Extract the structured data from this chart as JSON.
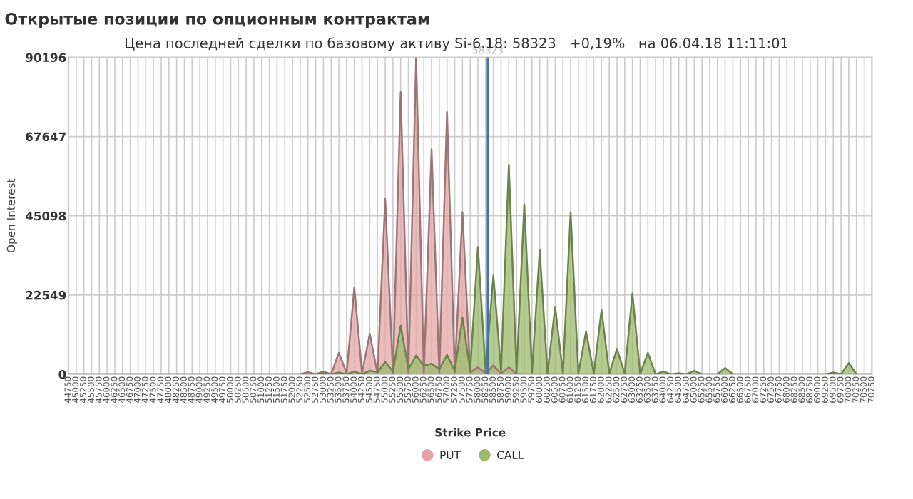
{
  "chart_data": {
    "type": "area",
    "title": "Открытые позиции по опционным контрактам",
    "subtitle": "Цена последней сделки по базовому активу Si-6.18: 58323   +0,19%   на 06.04.18 11:11:01",
    "xlabel": "Strike Price",
    "ylabel": "Open Interest",
    "x": [
      44750,
      45000,
      45250,
      45500,
      45750,
      46000,
      46250,
      46500,
      46750,
      47000,
      47250,
      47500,
      47750,
      48000,
      48250,
      48500,
      48750,
      49000,
      49250,
      49500,
      49750,
      50000,
      50250,
      50500,
      50750,
      51000,
      51250,
      51500,
      51750,
      52000,
      52250,
      52500,
      52750,
      53000,
      53250,
      53500,
      53750,
      54000,
      54250,
      54500,
      54750,
      55000,
      55250,
      55500,
      55750,
      56000,
      56250,
      56500,
      56750,
      57000,
      57250,
      57500,
      57750,
      58000,
      58250,
      58500,
      58750,
      59000,
      59250,
      59500,
      59750,
      60000,
      60250,
      60500,
      60750,
      61000,
      61250,
      61500,
      61750,
      62000,
      62250,
      62500,
      62750,
      63000,
      63250,
      63500,
      63750,
      64000,
      64250,
      64500,
      64750,
      65000,
      65250,
      65500,
      65750,
      66000,
      66250,
      66500,
      66750,
      67000,
      67250,
      67500,
      67750,
      68000,
      68250,
      68500,
      68750,
      69000,
      69250,
      69500,
      69750,
      70000,
      70250,
      70500,
      70750
    ],
    "series": [
      {
        "name": "PUT",
        "color": "#e3a5a5",
        "values": [
          0,
          0,
          0,
          0,
          0,
          0,
          0,
          0,
          0,
          0,
          0,
          0,
          0,
          0,
          0,
          0,
          0,
          0,
          0,
          0,
          0,
          0,
          0,
          0,
          0,
          0,
          0,
          0,
          0,
          0,
          0,
          600,
          0,
          800,
          0,
          6100,
          300,
          24700,
          300,
          11500,
          200,
          49900,
          300,
          80300,
          300,
          90196,
          300,
          64000,
          500,
          74600,
          500,
          46100,
          500,
          2000,
          300,
          2500,
          200,
          2000,
          100,
          0,
          0,
          0,
          0,
          0,
          0,
          0,
          0,
          0,
          0,
          0,
          0,
          0,
          0,
          0,
          0,
          0,
          0,
          0,
          0,
          0,
          0,
          0,
          0,
          0,
          0,
          0,
          0,
          0,
          0,
          0,
          0,
          0,
          0,
          0,
          0,
          0,
          0,
          0,
          0,
          0,
          0,
          0,
          0,
          0,
          0
        ]
      },
      {
        "name": "CALL",
        "color": "#9cbb6c",
        "values": [
          0,
          0,
          0,
          0,
          0,
          0,
          0,
          0,
          0,
          0,
          0,
          0,
          0,
          0,
          0,
          0,
          0,
          0,
          0,
          0,
          0,
          0,
          0,
          0,
          0,
          0,
          0,
          0,
          0,
          0,
          0,
          0,
          0,
          300,
          0,
          500,
          0,
          800,
          0,
          1000,
          600,
          3500,
          800,
          13800,
          1500,
          5300,
          2500,
          3000,
          1500,
          5500,
          1000,
          16100,
          1000,
          36200,
          800,
          28100,
          1000,
          59600,
          500,
          48400,
          500,
          35300,
          300,
          19200,
          300,
          46100,
          200,
          12200,
          200,
          18300,
          200,
          7200,
          200,
          23000,
          100,
          6100,
          0,
          800,
          0,
          300,
          0,
          1000,
          0,
          0,
          0,
          1800,
          0,
          0,
          0,
          0,
          0,
          0,
          0,
          0,
          0,
          0,
          0,
          0,
          0,
          500,
          0,
          3200,
          0,
          0,
          0
        ]
      }
    ],
    "xlim": [
      44750,
      70750
    ],
    "xticks": [
      44750,
      45000,
      45250,
      45500,
      45750,
      46000,
      46250,
      46500,
      46750,
      47000,
      47250,
      47500,
      47750,
      48000,
      48250,
      48500,
      48750,
      49000,
      49250,
      49500,
      49750,
      50000,
      50250,
      50500,
      50750,
      51000,
      51250,
      51500,
      51750,
      52000,
      52250,
      52500,
      52750,
      53000,
      53250,
      53500,
      53750,
      54000,
      54250,
      54500,
      54750,
      55000,
      55250,
      55500,
      55750,
      56000,
      56250,
      56500,
      56750,
      57000,
      57250,
      57500,
      57750,
      58000,
      58250,
      58500,
      58750,
      59000,
      59250,
      59500,
      59750,
      60000,
      60250,
      60500,
      60750,
      61000,
      61250,
      61500,
      61750,
      62000,
      62250,
      62500,
      62750,
      63000,
      63250,
      63500,
      63750,
      64000,
      64250,
      64500,
      64750,
      65000,
      65250,
      65500,
      65750,
      66000,
      66250,
      66500,
      66750,
      67000,
      67250,
      67500,
      67750,
      68000,
      68250,
      68500,
      68750,
      69000,
      69250,
      69500,
      69750,
      70000,
      70250,
      70500,
      70750
    ],
    "ylim": [
      0,
      90196
    ],
    "yticks": [
      0,
      22549,
      45098,
      67647,
      90196
    ],
    "ref_lines": [
      {
        "axis": "x",
        "value": 58323,
        "label": "58323",
        "color": "#4572a7"
      }
    ],
    "grid": true,
    "legend": "bottom",
    "marker": "none",
    "line_style": "solid"
  }
}
